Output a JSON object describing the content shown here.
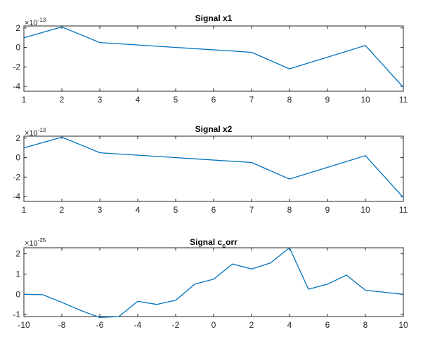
{
  "chart_data": [
    {
      "type": "line",
      "title": "Signal x1",
      "exponent_label": "×10",
      "exponent_power": "-13",
      "xlim": [
        1,
        11
      ],
      "ylim": [
        -4.5,
        2.2
      ],
      "xticks": [
        1,
        2,
        3,
        4,
        5,
        6,
        7,
        8,
        9,
        10,
        11
      ],
      "yticks": [
        2,
        0,
        -2,
        -4
      ],
      "color": "#0072bd",
      "x": [
        1,
        2,
        3,
        7,
        8,
        10,
        11
      ],
      "y": [
        1.0,
        2.1,
        0.5,
        -0.5,
        -2.2,
        0.2,
        -4.1
      ]
    },
    {
      "type": "line",
      "title": "Signal x2",
      "exponent_label": "×10",
      "exponent_power": "-13",
      "xlim": [
        1,
        11
      ],
      "ylim": [
        -4.5,
        2.2
      ],
      "xticks": [
        1,
        2,
        3,
        4,
        5,
        6,
        7,
        8,
        9,
        10,
        11
      ],
      "yticks": [
        2,
        0,
        -2,
        -4
      ],
      "color": "#0072bd",
      "x": [
        1,
        2,
        3,
        7,
        8,
        10,
        11
      ],
      "y": [
        1.0,
        2.1,
        0.5,
        -0.5,
        -2.2,
        0.2,
        -4.1
      ]
    },
    {
      "type": "line",
      "title_main": "Signal c",
      "title_sub": "c",
      "title_tail": "orr",
      "exponent_label": "×10",
      "exponent_power": "-25",
      "xlim": [
        -10,
        10
      ],
      "ylim": [
        -1.1,
        2.3
      ],
      "xticks": [
        -10,
        -8,
        -6,
        -4,
        -2,
        0,
        2,
        4,
        6,
        8,
        10
      ],
      "yticks": [
        2,
        1,
        0,
        -1
      ],
      "color": "#0072bd",
      "x": [
        -10,
        -9,
        -8,
        -7,
        -6,
        -5,
        -4,
        -3,
        -2,
        -1,
        0,
        1,
        2,
        3,
        4,
        5,
        6,
        7,
        8,
        9,
        10
      ],
      "y": [
        0.0,
        -0.02,
        -0.4,
        -0.8,
        -1.15,
        -1.1,
        -0.35,
        -0.5,
        -0.3,
        0.5,
        0.75,
        1.5,
        1.25,
        1.55,
        2.3,
        0.25,
        0.5,
        0.95,
        0.2,
        0.1,
        0.0
      ]
    }
  ]
}
